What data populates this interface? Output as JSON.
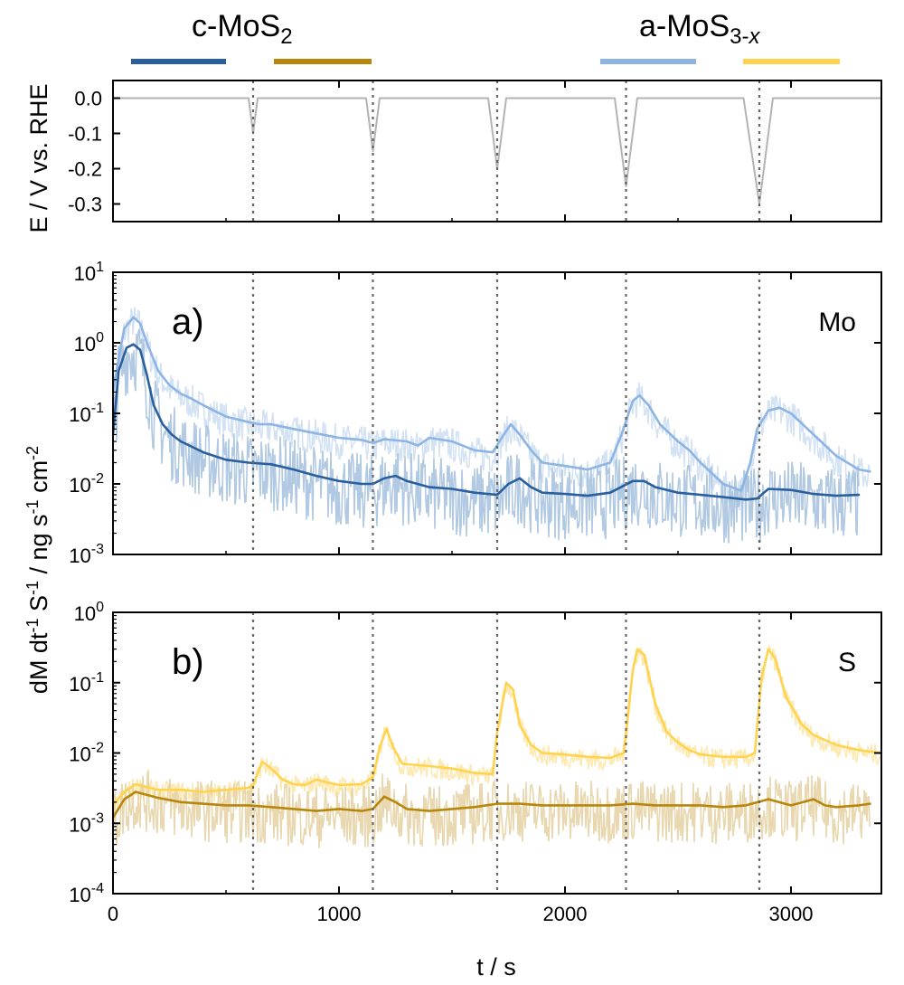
{
  "legend": {
    "groups": [
      {
        "name": "c-MoS",
        "sub": "2",
        "italic_sub": "",
        "colors": [
          "#2a5f9e",
          "#b8860b"
        ]
      },
      {
        "name": "a-MoS",
        "sub": "3-",
        "italic_sub": "x",
        "colors": [
          "#8db4e2",
          "#ffd34d"
        ]
      }
    ]
  },
  "colors": {
    "c_mos2_mo": "#2a5f9e",
    "c_mos2_mo_raw": "#a9c3df",
    "c_mos2_s": "#b8860b",
    "c_mos2_s_raw": "#e6d3a6",
    "a_mos3_mo": "#8db4e2",
    "a_mos3_mo_raw": "#cfe0f3",
    "a_mos3_s": "#ffd34d",
    "a_mos3_s_raw": "#fde7a8",
    "potential": "#b3b3b3",
    "marker": "#666666"
  },
  "chart_data": [
    {
      "type": "line",
      "panel": "potential",
      "ylabel": "E / V vs. RHE",
      "xlim": [
        0,
        3400
      ],
      "ylim": [
        -0.35,
        0.05
      ],
      "yticks": [
        "0.0",
        "-0.1",
        "-0.2",
        "-0.3"
      ],
      "ytick_values": [
        0.0,
        -0.1,
        -0.2,
        -0.3
      ],
      "series": [
        {
          "values": [
            [
              0,
              0
            ],
            [
              600,
              0
            ],
            [
              620,
              -0.1
            ],
            [
              640,
              0
            ],
            [
              1120,
              0
            ],
            [
              1150,
              -0.15
            ],
            [
              1180,
              0
            ],
            [
              1660,
              0
            ],
            [
              1700,
              -0.2
            ],
            [
              1740,
              0
            ],
            [
              2220,
              0
            ],
            [
              2270,
              -0.25
            ],
            [
              2320,
              0
            ],
            [
              2790,
              0
            ],
            [
              2860,
              -0.3
            ],
            [
              2920,
              0
            ],
            [
              3400,
              0
            ]
          ]
        }
      ]
    },
    {
      "type": "line",
      "panel": "a",
      "panel_label": "a)",
      "element": "Mo",
      "log_scale": true,
      "xlim": [
        0,
        3400
      ],
      "ylim": [
        0.001,
        10
      ],
      "ytick_exponents": [
        "1",
        "0",
        "-1",
        "-2",
        "-3"
      ],
      "series": [
        {
          "values": [
            [
              0,
              0.2
            ],
            [
              25,
              0.6
            ],
            [
              50,
              1.6
            ],
            [
              90,
              2.3
            ],
            [
              120,
              1.9
            ],
            [
              150,
              1.0
            ],
            [
              200,
              0.4
            ],
            [
              250,
              0.25
            ],
            [
              300,
              0.19
            ],
            [
              350,
              0.16
            ],
            [
              400,
              0.13
            ],
            [
              500,
              0.09
            ],
            [
              600,
              0.075
            ],
            [
              650,
              0.07
            ],
            [
              700,
              0.07
            ],
            [
              800,
              0.06
            ],
            [
              900,
              0.052
            ],
            [
              1000,
              0.045
            ],
            [
              1100,
              0.042
            ],
            [
              1150,
              0.038
            ],
            [
              1200,
              0.043
            ],
            [
              1300,
              0.04
            ],
            [
              1350,
              0.035
            ],
            [
              1400,
              0.045
            ],
            [
              1500,
              0.04
            ],
            [
              1600,
              0.03
            ],
            [
              1680,
              0.028
            ],
            [
              1720,
              0.045
            ],
            [
              1760,
              0.07
            ],
            [
              1800,
              0.05
            ],
            [
              1850,
              0.03
            ],
            [
              1900,
              0.02
            ],
            [
              2000,
              0.018
            ],
            [
              2100,
              0.016
            ],
            [
              2200,
              0.02
            ],
            [
              2250,
              0.05
            ],
            [
              2300,
              0.15
            ],
            [
              2330,
              0.18
            ],
            [
              2370,
              0.13
            ],
            [
              2420,
              0.07
            ],
            [
              2500,
              0.04
            ],
            [
              2550,
              0.03
            ],
            [
              2600,
              0.02
            ],
            [
              2700,
              0.01
            ],
            [
              2780,
              0.008
            ],
            [
              2820,
              0.02
            ],
            [
              2850,
              0.06
            ],
            [
              2900,
              0.11
            ],
            [
              2950,
              0.12
            ],
            [
              3000,
              0.1
            ],
            [
              3100,
              0.05
            ],
            [
              3200,
              0.025
            ],
            [
              3300,
              0.016
            ],
            [
              3350,
              0.015
            ]
          ]
        },
        {
          "values": [
            [
              0,
              0.05
            ],
            [
              25,
              0.4
            ],
            [
              60,
              0.85
            ],
            [
              90,
              0.95
            ],
            [
              120,
              0.8
            ],
            [
              150,
              0.35
            ],
            [
              180,
              0.13
            ],
            [
              220,
              0.07
            ],
            [
              260,
              0.05
            ],
            [
              300,
              0.04
            ],
            [
              400,
              0.028
            ],
            [
              500,
              0.022
            ],
            [
              600,
              0.02
            ],
            [
              700,
              0.019
            ],
            [
              800,
              0.016
            ],
            [
              900,
              0.013
            ],
            [
              1000,
              0.011
            ],
            [
              1100,
              0.01
            ],
            [
              1150,
              0.01
            ],
            [
              1200,
              0.012
            ],
            [
              1250,
              0.013
            ],
            [
              1300,
              0.011
            ],
            [
              1400,
              0.009
            ],
            [
              1500,
              0.0085
            ],
            [
              1600,
              0.0075
            ],
            [
              1700,
              0.007
            ],
            [
              1750,
              0.01
            ],
            [
              1800,
              0.012
            ],
            [
              1850,
              0.009
            ],
            [
              1900,
              0.0075
            ],
            [
              2000,
              0.0072
            ],
            [
              2100,
              0.0068
            ],
            [
              2200,
              0.0075
            ],
            [
              2300,
              0.011
            ],
            [
              2350,
              0.011
            ],
            [
              2400,
              0.009
            ],
            [
              2500,
              0.0075
            ],
            [
              2600,
              0.007
            ],
            [
              2700,
              0.0065
            ],
            [
              2800,
              0.006
            ],
            [
              2850,
              0.0062
            ],
            [
              2900,
              0.0085
            ],
            [
              3000,
              0.0082
            ],
            [
              3100,
              0.0072
            ],
            [
              3200,
              0.0068
            ],
            [
              3300,
              0.007
            ]
          ]
        }
      ]
    },
    {
      "type": "line",
      "panel": "b",
      "panel_label": "b)",
      "element": "S",
      "log_scale": true,
      "xlim": [
        0,
        3400
      ],
      "ylim": [
        0.0001,
        1
      ],
      "ytick_exponents": [
        "0",
        "-1",
        "-2",
        "-3",
        "-4"
      ],
      "series": [
        {
          "values": [
            [
              0,
              0.0018
            ],
            [
              50,
              0.0028
            ],
            [
              100,
              0.0036
            ],
            [
              200,
              0.003
            ],
            [
              300,
              0.003
            ],
            [
              400,
              0.0028
            ],
            [
              500,
              0.003
            ],
            [
              600,
              0.0032
            ],
            [
              620,
              0.0035
            ],
            [
              660,
              0.0075
            ],
            [
              700,
              0.006
            ],
            [
              750,
              0.0042
            ],
            [
              800,
              0.0036
            ],
            [
              850,
              0.0035
            ],
            [
              900,
              0.0042
            ],
            [
              950,
              0.0038
            ],
            [
              1000,
              0.0035
            ],
            [
              1100,
              0.0036
            ],
            [
              1150,
              0.0045
            ],
            [
              1180,
              0.012
            ],
            [
              1210,
              0.022
            ],
            [
              1240,
              0.012
            ],
            [
              1280,
              0.007
            ],
            [
              1400,
              0.0065
            ],
            [
              1500,
              0.006
            ],
            [
              1600,
              0.0052
            ],
            [
              1680,
              0.005
            ],
            [
              1700,
              0.02
            ],
            [
              1740,
              0.1
            ],
            [
              1770,
              0.08
            ],
            [
              1800,
              0.025
            ],
            [
              1850,
              0.013
            ],
            [
              1900,
              0.01
            ],
            [
              2000,
              0.0095
            ],
            [
              2100,
              0.0088
            ],
            [
              2200,
              0.0085
            ],
            [
              2260,
              0.01
            ],
            [
              2300,
              0.15
            ],
            [
              2320,
              0.3
            ],
            [
              2350,
              0.25
            ],
            [
              2400,
              0.05
            ],
            [
              2450,
              0.02
            ],
            [
              2500,
              0.014
            ],
            [
              2550,
              0.011
            ],
            [
              2600,
              0.0095
            ],
            [
              2700,
              0.0088
            ],
            [
              2800,
              0.0088
            ],
            [
              2840,
              0.01
            ],
            [
              2870,
              0.12
            ],
            [
              2900,
              0.3
            ],
            [
              2930,
              0.22
            ],
            [
              2980,
              0.06
            ],
            [
              3050,
              0.025
            ],
            [
              3100,
              0.018
            ],
            [
              3200,
              0.013
            ],
            [
              3300,
              0.011
            ],
            [
              3400,
              0.01
            ]
          ]
        },
        {
          "values": [
            [
              0,
              0.0012
            ],
            [
              50,
              0.0022
            ],
            [
              100,
              0.0028
            ],
            [
              200,
              0.0023
            ],
            [
              300,
              0.002
            ],
            [
              400,
              0.0019
            ],
            [
              500,
              0.0018
            ],
            [
              600,
              0.0018
            ],
            [
              700,
              0.0017
            ],
            [
              800,
              0.0016
            ],
            [
              900,
              0.0015
            ],
            [
              1000,
              0.0016
            ],
            [
              1100,
              0.0015
            ],
            [
              1150,
              0.0016
            ],
            [
              1200,
              0.0024
            ],
            [
              1250,
              0.002
            ],
            [
              1300,
              0.0016
            ],
            [
              1400,
              0.0015
            ],
            [
              1500,
              0.0016
            ],
            [
              1600,
              0.0017
            ],
            [
              1700,
              0.0019
            ],
            [
              1800,
              0.0019
            ],
            [
              1900,
              0.0018
            ],
            [
              2000,
              0.0018
            ],
            [
              2100,
              0.0018
            ],
            [
              2200,
              0.0018
            ],
            [
              2300,
              0.0019
            ],
            [
              2400,
              0.0018
            ],
            [
              2500,
              0.0018
            ],
            [
              2600,
              0.0018
            ],
            [
              2700,
              0.0017
            ],
            [
              2800,
              0.0018
            ],
            [
              2900,
              0.0022
            ],
            [
              3000,
              0.0018
            ],
            [
              3100,
              0.0022
            ],
            [
              3150,
              0.0018
            ],
            [
              3200,
              0.0017
            ],
            [
              3300,
              0.0018
            ],
            [
              3350,
              0.0019
            ]
          ]
        }
      ]
    }
  ],
  "shared": {
    "xlabel": "t / s",
    "xticks": [
      "0",
      "1000",
      "2000",
      "3000"
    ],
    "xtick_values": [
      0,
      1000,
      2000,
      3000
    ],
    "ylabel_rate": {
      "parts": [
        "dM dt",
        "-1",
        " S",
        "-1",
        " / ng s",
        "-1",
        " cm",
        "-2"
      ]
    },
    "log_tick_base": "10",
    "marker_times": [
      620,
      1150,
      1700,
      2270,
      2860
    ]
  }
}
